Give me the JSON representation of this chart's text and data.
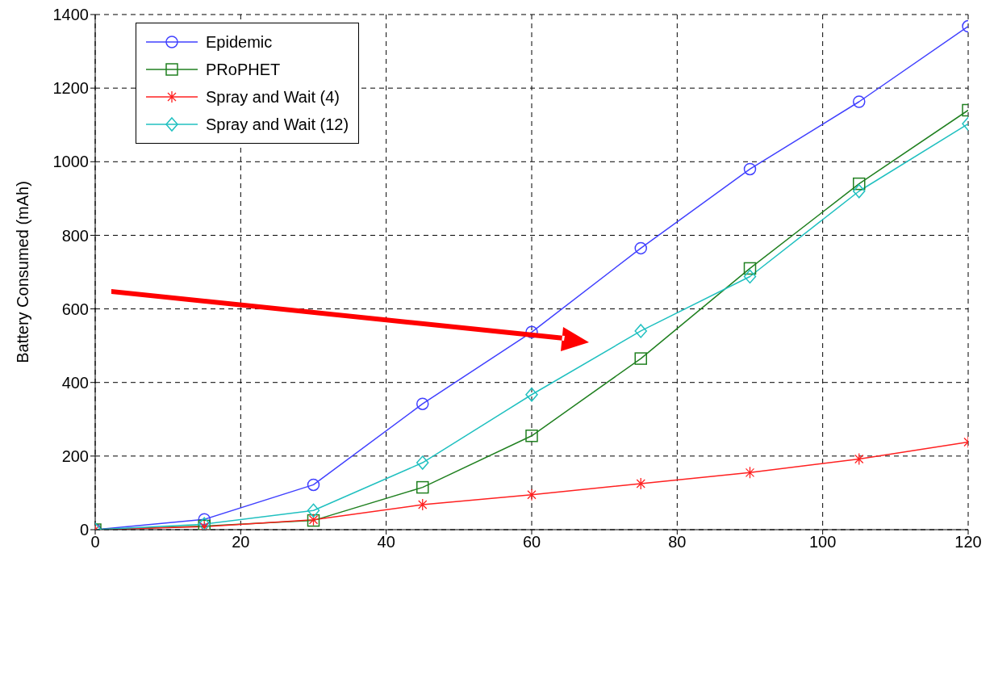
{
  "chart_data": {
    "type": "line",
    "ylabel": "Battery Consumed (mAh)",
    "x": [
      0,
      15,
      30,
      45,
      60,
      75,
      90,
      105,
      120
    ],
    "series": [
      {
        "name": "Epidemic",
        "color": "#4040ff",
        "marker": "circle",
        "values": [
          0,
          28,
          122,
          342,
          537,
          765,
          980,
          1163,
          1368
        ]
      },
      {
        "name": "PRoPHET",
        "color": "#208020",
        "marker": "square",
        "values": [
          0,
          10,
          25,
          115,
          255,
          465,
          710,
          940,
          1140
        ]
      },
      {
        "name": "Spray and Wait (4)",
        "color": "#ff2020",
        "marker": "cross",
        "values": [
          0,
          8,
          27,
          68,
          95,
          125,
          155,
          192,
          238
        ]
      },
      {
        "name": "Spray and Wait (12)",
        "color": "#20c0c0",
        "marker": "diamond",
        "values": [
          0,
          15,
          52,
          182,
          367,
          540,
          688,
          920,
          1103
        ]
      }
    ],
    "xlim": [
      0,
      120
    ],
    "xticks": [
      0,
      20,
      40,
      60,
      80,
      100,
      120
    ],
    "ylim": [
      0,
      1400
    ],
    "yticks": [
      0,
      200,
      400,
      600,
      800,
      1000,
      1200,
      1400
    ],
    "grid": true,
    "legend": "top left",
    "line_style": "solid"
  }
}
